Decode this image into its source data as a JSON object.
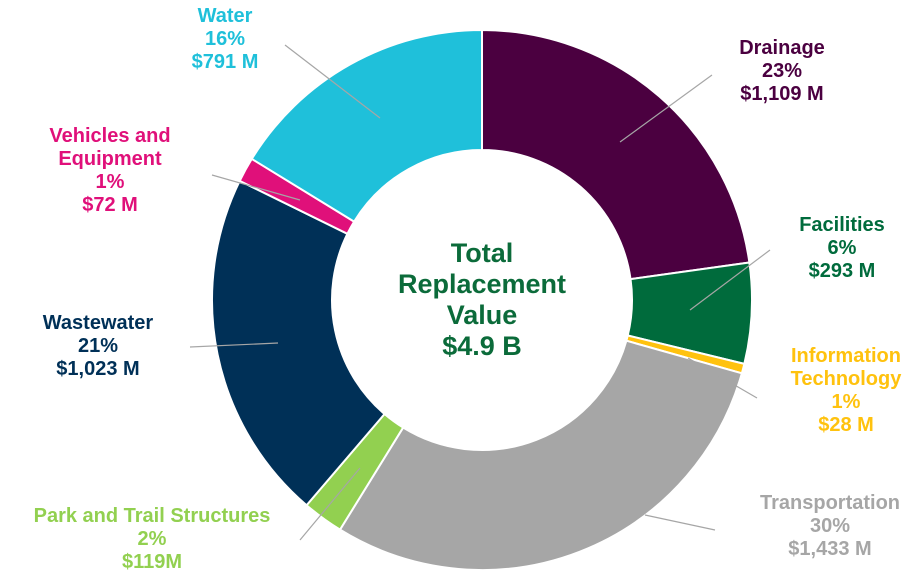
{
  "chart_data": {
    "type": "pie",
    "categories": [
      "Drainage",
      "Facilities",
      "Information Technology",
      "Transportation",
      "Park and Trail Structures",
      "Wastewater",
      "Vehicles and Equipment",
      "Water"
    ],
    "values": [
      1109,
      293,
      28,
      1433,
      119,
      1023,
      72,
      791
    ],
    "value_labels": [
      "$1,109 M",
      "$293 M",
      "$28 M",
      "$1,433 M",
      "$119M",
      "$1,023 M",
      "$72 M",
      "$791 M"
    ],
    "percent_labels": [
      "23%",
      "6%",
      "1%",
      "30%",
      "2%",
      "21%",
      "1%",
      "16%"
    ],
    "colors": [
      "#4b0040",
      "#006b3c",
      "#ffc20e",
      "#a6a6a6",
      "#92d050",
      "#003057",
      "#e0107a",
      "#1fc0da"
    ],
    "center_text": [
      "Total",
      "Replacement",
      "Value",
      "$4.9 B"
    ],
    "center_color": "#0b6b3a"
  }
}
